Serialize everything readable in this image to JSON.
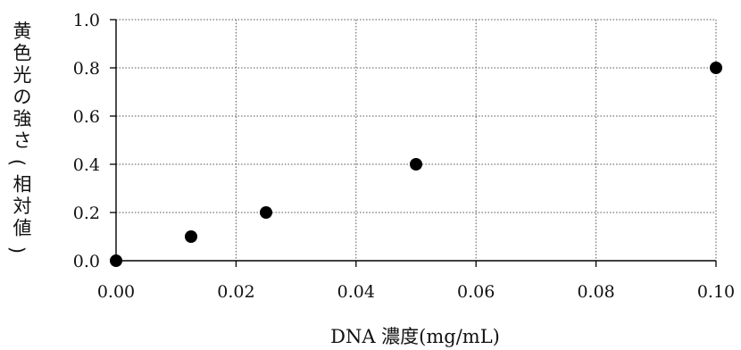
{
  "chart_data": {
    "type": "scatter",
    "title": "",
    "xlabel": "DNA 濃度(mg/mL)",
    "ylabel": "黄色光の強さ(相対値)",
    "xlim": [
      0.0,
      0.1
    ],
    "ylim": [
      0.0,
      1.0
    ],
    "x_ticks": [
      "0.00",
      "0.02",
      "0.04",
      "0.06",
      "0.08",
      "0.10"
    ],
    "y_ticks": [
      "0.0",
      "0.2",
      "0.4",
      "0.6",
      "0.8",
      "1.0"
    ],
    "grid": true,
    "series": [
      {
        "points": [
          {
            "x": 0.0,
            "y": 0.0
          },
          {
            "x": 0.0125,
            "y": 0.1
          },
          {
            "x": 0.025,
            "y": 0.2
          },
          {
            "x": 0.05,
            "y": 0.4
          },
          {
            "x": 0.1,
            "y": 0.8
          }
        ]
      }
    ],
    "colors": {
      "points": "#000000",
      "axis": "#000000",
      "grid": "#555555"
    }
  }
}
